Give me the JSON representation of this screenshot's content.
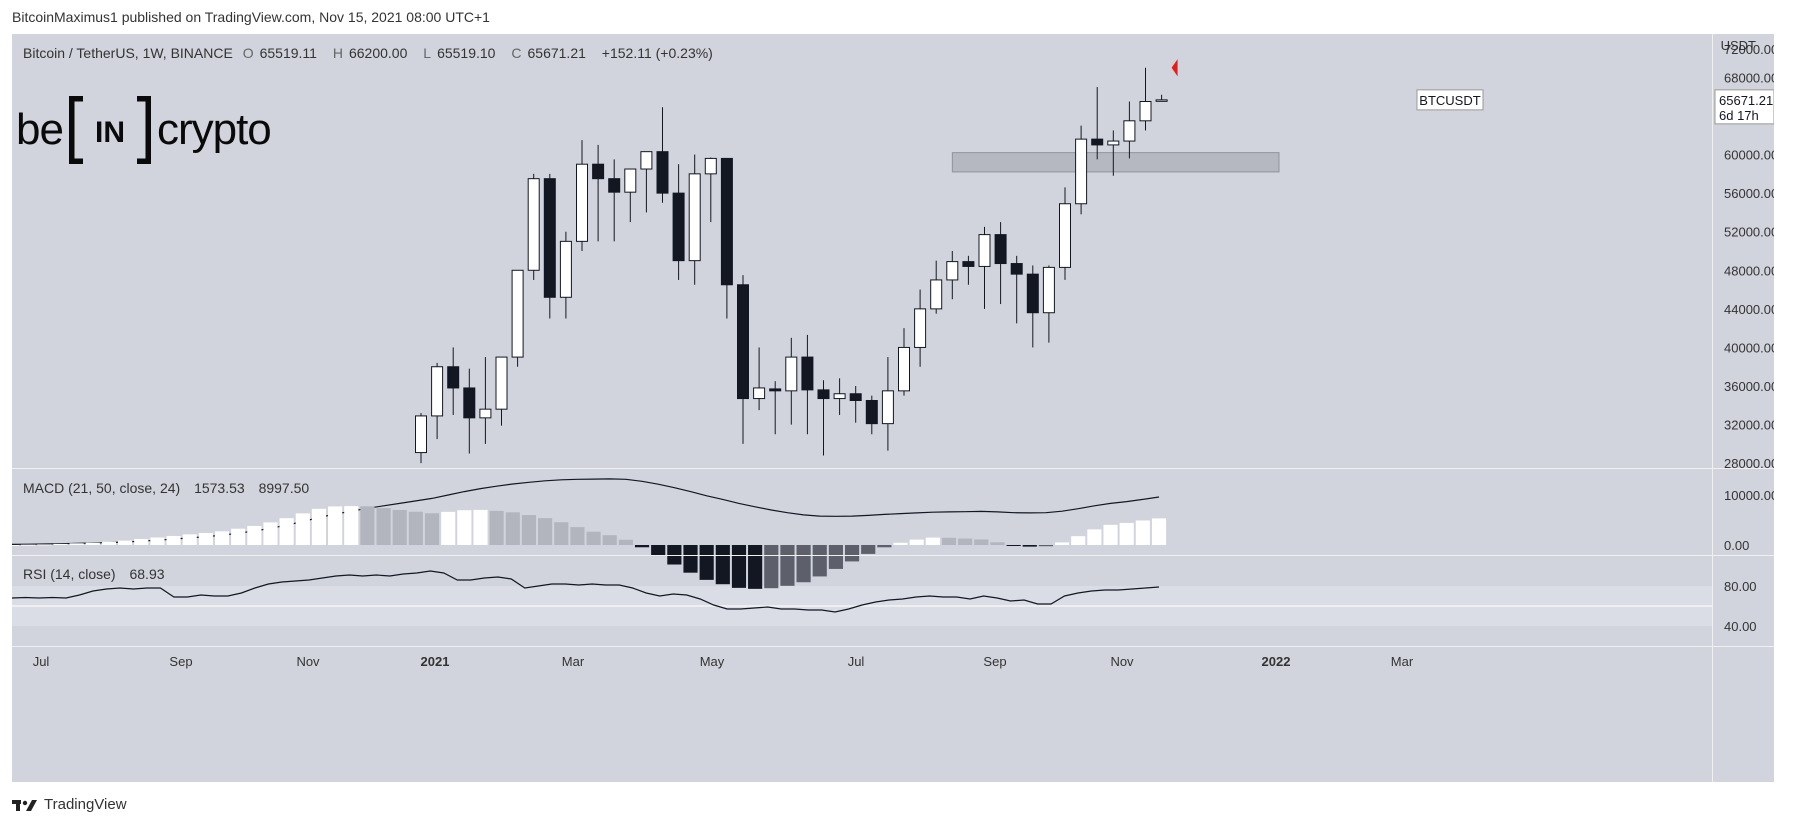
{
  "publish_line": "BitcoinMaximus1 published on TradingView.com, Nov 15, 2021 08:00 UTC+1",
  "header": {
    "symbol": "Bitcoin / TetherUS, 1W, BINANCE",
    "o_key": "O",
    "o": "65519.11",
    "h_key": "H",
    "h": "66200.00",
    "l_key": "L",
    "l": "65519.10",
    "c_key": "C",
    "c": "65671.21",
    "change": "+152.11 (+0.23%)"
  },
  "logo": {
    "left": "be",
    "mid": "IN",
    "right": "crypto"
  },
  "price_axis": {
    "currency": "USDT",
    "ticks": [
      "72000.00",
      "68000.00",
      "60000.00",
      "56000.00",
      "52000.00",
      "48000.00",
      "44000.00",
      "40000.00",
      "36000.00",
      "32000.00",
      "28000.00"
    ]
  },
  "badge": {
    "symbol": "BTCUSDT",
    "price": "65671.21",
    "countdown": "6d 17h"
  },
  "macd": {
    "label": "MACD (21, 50, close, 24)",
    "v1": "1573.53",
    "v2": "8997.50",
    "ticks": [
      "10000.00",
      "0.00"
    ]
  },
  "rsi": {
    "label": "RSI (14, close)",
    "value": "68.93",
    "ticks": [
      "80.00",
      "40.00"
    ]
  },
  "time_axis": [
    "Jul",
    "Sep",
    "Nov",
    "2021",
    "Mar",
    "May",
    "Jul",
    "Sep",
    "Nov",
    "2022",
    "Mar"
  ],
  "footer": "TradingView",
  "colors": {
    "bg": "#d1d4dc",
    "up": "#ffffff",
    "down": "#131722",
    "zone": "#b2b5be",
    "arrow": "#e0201a"
  },
  "chart_data": {
    "type": "candlestick",
    "symbol": "BTCUSDT",
    "timeframe": "1W",
    "ylim": [
      27500,
      72500
    ],
    "resistance_zone": [
      58200,
      60200
    ],
    "candles": [
      [
        29100,
        33200,
        28000,
        32900
      ],
      [
        32900,
        38400,
        30500,
        38000
      ],
      [
        38000,
        40000,
        33000,
        35800
      ],
      [
        35800,
        37800,
        29000,
        32700
      ],
      [
        32700,
        39000,
        30000,
        33600
      ],
      [
        33600,
        39000,
        31900,
        39000
      ],
      [
        39000,
        48000,
        38000,
        48000
      ],
      [
        48000,
        58000,
        47000,
        57500
      ],
      [
        57500,
        58000,
        43000,
        45200
      ],
      [
        45200,
        52000,
        43000,
        51000
      ],
      [
        51000,
        61500,
        50000,
        59000
      ],
      [
        59000,
        61000,
        51000,
        57500
      ],
      [
        57500,
        59500,
        51000,
        56100
      ],
      [
        56100,
        58500,
        53000,
        58500
      ],
      [
        58500,
        60000,
        54000,
        60300
      ],
      [
        60300,
        64900,
        55000,
        56000
      ],
      [
        56000,
        59000,
        47000,
        49000
      ],
      [
        49000,
        60000,
        46500,
        58000
      ],
      [
        58000,
        59700,
        53000,
        59600
      ],
      [
        59600,
        59500,
        43000,
        46500
      ],
      [
        46500,
        47500,
        30000,
        34700
      ],
      [
        34700,
        40000,
        33500,
        35800
      ],
      [
        35700,
        36500,
        31000,
        35500
      ],
      [
        35500,
        41000,
        32000,
        39000
      ],
      [
        39000,
        41300,
        31000,
        35600
      ],
      [
        35600,
        36600,
        28800,
        34700
      ],
      [
        34700,
        36800,
        33000,
        35200
      ],
      [
        35200,
        36000,
        32200,
        34500
      ],
      [
        34500,
        35000,
        31000,
        32100
      ],
      [
        32100,
        39000,
        29300,
        35500
      ],
      [
        35500,
        42000,
        35000,
        40000
      ],
      [
        40000,
        46000,
        38000,
        44000
      ],
      [
        44000,
        49000,
        43500,
        47000
      ],
      [
        47000,
        50000,
        45000,
        48900
      ],
      [
        48900,
        49500,
        46500,
        48400
      ],
      [
        48400,
        52500,
        44000,
        51700
      ],
      [
        51700,
        53000,
        44500,
        48700
      ],
      [
        48700,
        49500,
        42500,
        47600
      ],
      [
        47600,
        48500,
        40000,
        43600
      ],
      [
        43600,
        48500,
        40500,
        48300
      ],
      [
        48300,
        56600,
        47000,
        54900
      ],
      [
        54900,
        63000,
        53800,
        61600
      ],
      [
        61600,
        67000,
        59500,
        61000
      ],
      [
        61000,
        62500,
        57800,
        61400
      ],
      [
        61400,
        65500,
        59600,
        63500
      ],
      [
        63500,
        69000,
        62500,
        65500
      ],
      [
        65519.11,
        66200,
        65519.1,
        65671.21
      ]
    ],
    "macd": {
      "line": [
        120,
        160,
        200,
        260,
        330,
        400,
        500,
        620,
        780,
        980,
        1200,
        1450,
        1700,
        2000,
        2400,
        2850,
        3400,
        4050,
        4800,
        5600,
        6300,
        6900,
        7500,
        8000,
        8500,
        9000,
        9500,
        10200,
        10900,
        11500,
        12000,
        12450,
        12800,
        13100,
        13300,
        13400,
        13450,
        13500,
        13400,
        13000,
        12400,
        11700,
        10900,
        10050,
        9300,
        8500,
        7800,
        7150,
        6600,
        6150,
        5900,
        5850,
        5900,
        6050,
        6250,
        6400,
        6550,
        6700,
        6750,
        6800,
        6850,
        6750,
        6600,
        6550,
        6600,
        6900,
        7400,
        8000,
        8500,
        8850,
        9300,
        9800
      ]
    },
    "rsi": {
      "line": [
        58,
        58.5,
        58,
        58.5,
        58,
        61,
        65,
        67,
        68,
        67,
        68,
        68,
        59,
        59,
        61,
        60,
        60,
        63,
        68,
        72,
        74,
        75,
        76,
        78,
        80,
        81,
        80,
        81,
        80,
        82,
        83,
        85,
        83,
        76,
        76,
        78,
        79,
        77,
        68,
        70,
        72,
        72,
        71,
        72,
        71,
        71,
        68,
        63,
        60,
        62,
        61,
        57,
        51,
        47,
        47,
        48,
        49,
        47,
        47,
        46,
        46,
        44,
        47,
        51,
        54,
        56,
        57,
        59,
        60,
        59,
        59,
        57,
        60,
        58,
        55,
        56,
        52,
        52,
        60,
        63,
        65,
        66,
        66,
        67,
        68,
        69
      ],
      "levels": [
        70,
        50,
        30
      ]
    }
  }
}
